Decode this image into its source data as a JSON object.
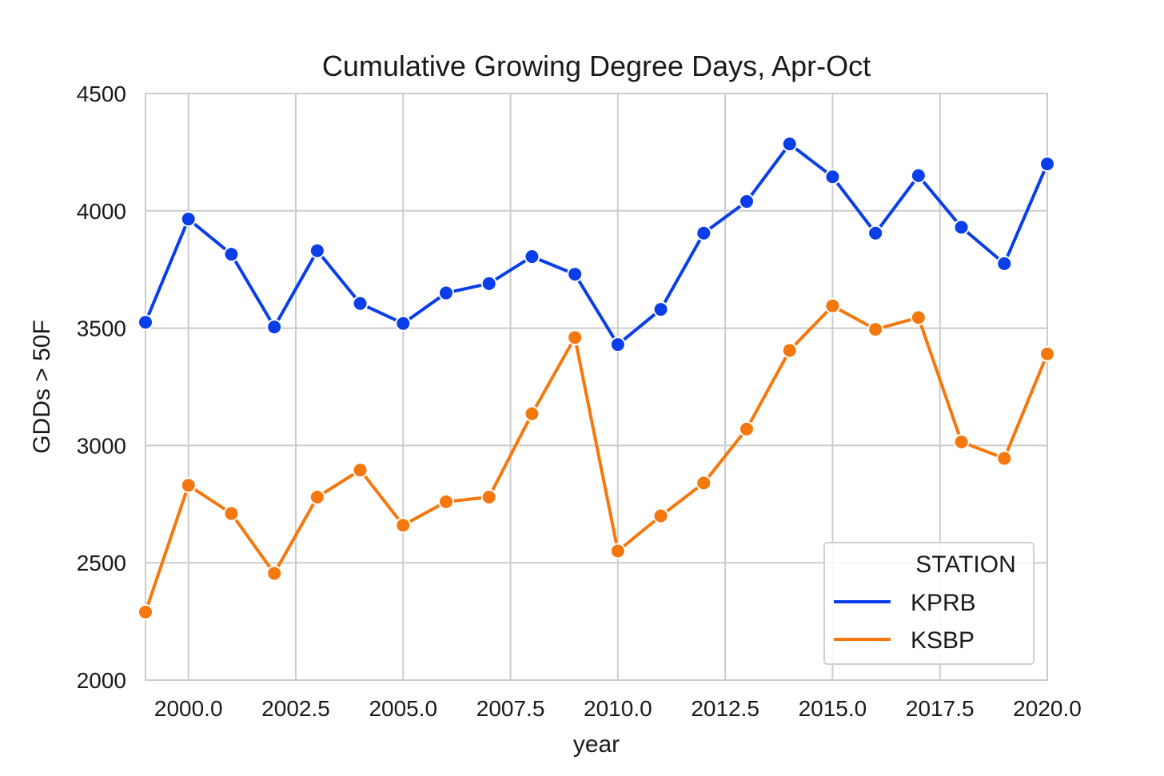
{
  "chart_data": {
    "type": "line",
    "title": "Cumulative Growing Degree Days, Apr-Oct",
    "xlabel": "year",
    "ylabel": "GDDs > 50F",
    "xlim": [
      1999,
      2020
    ],
    "ylim": [
      2000,
      4500
    ],
    "xticks": [
      2000.0,
      2002.5,
      2005.0,
      2007.5,
      2010.0,
      2012.5,
      2015.0,
      2017.5,
      2020.0
    ],
    "xtick_labels": [
      "2000.0",
      "2002.5",
      "2005.0",
      "2007.5",
      "2010.0",
      "2012.5",
      "2015.0",
      "2017.5",
      "2020.0"
    ],
    "yticks": [
      2000,
      2500,
      3000,
      3500,
      4000,
      4500
    ],
    "ytick_labels": [
      "2000",
      "2500",
      "3000",
      "3500",
      "4000",
      "4500"
    ],
    "grid": true,
    "legend": {
      "title": "STATION",
      "placement": "lower-right"
    },
    "x": [
      1999,
      2000,
      2001,
      2002,
      2003,
      2004,
      2005,
      2006,
      2007,
      2008,
      2009,
      2010,
      2011,
      2012,
      2013,
      2014,
      2015,
      2016,
      2017,
      2018,
      2019,
      2020
    ],
    "series": [
      {
        "name": "KPRB",
        "color": "#0a3ee8",
        "values": [
          3525,
          3965,
          3815,
          3505,
          3830,
          3605,
          3520,
          3650,
          3690,
          3805,
          3730,
          3430,
          3580,
          3905,
          4040,
          4285,
          4145,
          3905,
          4150,
          3930,
          3775,
          4200
        ]
      },
      {
        "name": "KSBP",
        "color": "#f5780e",
        "values": [
          2290,
          2830,
          2710,
          2455,
          2780,
          2895,
          2660,
          2760,
          2780,
          3135,
          3460,
          2550,
          2700,
          2840,
          3070,
          3405,
          3595,
          3495,
          3545,
          3015,
          2945,
          3390
        ]
      }
    ]
  }
}
